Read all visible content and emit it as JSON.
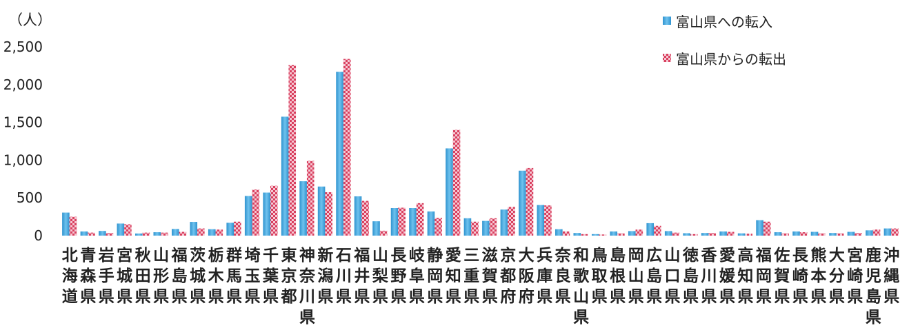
{
  "chart_data": {
    "type": "bar",
    "y_unit_label": "（人）",
    "ylim": [
      0,
      2500
    ],
    "yticks": [
      0,
      500,
      1000,
      1500,
      2000,
      2500
    ],
    "ytick_labels": [
      "0",
      "500",
      "1,000",
      "1,500",
      "2,000",
      "2,500"
    ],
    "grid": false,
    "legend_position": "top-right",
    "categories": [
      "北海道",
      "青森県",
      "岩手県",
      "宮城県",
      "秋田県",
      "山形県",
      "福島県",
      "茨城県",
      "栃木県",
      "群馬県",
      "埼玉県",
      "千葉県",
      "東京都",
      "神奈川県",
      "新潟県",
      "石川県",
      "福井県",
      "山梨県",
      "長野県",
      "岐阜県",
      "静岡県",
      "愛知県",
      "三重県",
      "滋賀県",
      "京都府",
      "大阪府",
      "兵庫県",
      "奈良県",
      "和歌山県",
      "鳥取県",
      "島根県",
      "岡山県",
      "広島県",
      "山口県",
      "徳島県",
      "香川県",
      "愛媛県",
      "高知県",
      "福岡県",
      "佐賀県",
      "長崎県",
      "熊本県",
      "大分県",
      "宮崎県",
      "鹿児島県",
      "沖縄県"
    ],
    "series": [
      {
        "name": "富山県への転入",
        "color": "#4aa8dc",
        "values": [
          305,
          55,
          62,
          160,
          28,
          45,
          88,
          182,
          85,
          170,
          525,
          570,
          1575,
          720,
          650,
          2170,
          520,
          190,
          365,
          365,
          320,
          1155,
          230,
          195,
          345,
          860,
          405,
          85,
          35,
          20,
          55,
          60,
          165,
          60,
          32,
          35,
          55,
          30,
          205,
          45,
          55,
          50,
          35,
          50,
          70,
          95
        ]
      },
      {
        "name": "富山県からの転出",
        "color": "#e0506e",
        "values": [
          250,
          40,
          35,
          150,
          40,
          40,
          50,
          95,
          80,
          185,
          610,
          660,
          2260,
          990,
          575,
          2340,
          460,
          65,
          370,
          430,
          235,
          1400,
          185,
          230,
          380,
          895,
          400,
          55,
          20,
          15,
          30,
          80,
          130,
          40,
          20,
          35,
          50,
          25,
          185,
          30,
          45,
          30,
          30,
          35,
          80,
          95
        ]
      }
    ]
  }
}
